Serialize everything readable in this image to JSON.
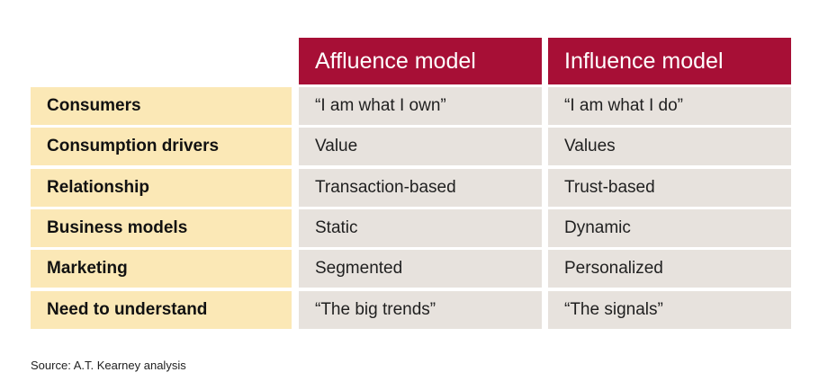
{
  "table": {
    "columns": [
      "Affluence model",
      "Influence model"
    ],
    "rows": [
      [
        "Consumers",
        "“I am what I own”",
        "“I am what I do”"
      ],
      [
        "Consumption drivers",
        "Value",
        "Values"
      ],
      [
        "Relationship",
        "Transaction-based",
        "Trust-based"
      ],
      [
        "Business models",
        "Static",
        "Dynamic"
      ],
      [
        "Marketing",
        "Segmented",
        "Personalized"
      ],
      [
        "Need to understand",
        "“The big trends”",
        "“The signals”"
      ]
    ]
  },
  "source": "Source: A.T. Kearney analysis"
}
